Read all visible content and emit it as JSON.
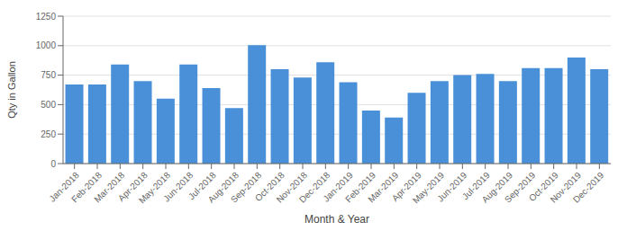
{
  "chart_data": {
    "type": "bar",
    "categories": [
      "Jan-2018",
      "Feb-2018",
      "Mar-2018",
      "Apr-2018",
      "May-2018",
      "Jun-2018",
      "Jul-2018",
      "Aug-2018",
      "Sep-2018",
      "Oct-2018",
      "Nov-2018",
      "Dec-2018",
      "Jan-2019",
      "Feb-2019",
      "Mar-2019",
      "Apr-2019",
      "May-2019",
      "Jun-2019",
      "Jul-2019",
      "Aug-2019",
      "Sep-2019",
      "Oct-2019",
      "Nov-2019",
      "Dec-2019"
    ],
    "values": [
      670,
      670,
      840,
      700,
      550,
      840,
      640,
      470,
      1005,
      800,
      730,
      860,
      690,
      450,
      390,
      600,
      700,
      750,
      760,
      700,
      810,
      810,
      900,
      800
    ],
    "color": "#4a90d9",
    "xlabel": "Month & Year",
    "ylabel": "Qty in Gallon",
    "ylim": [
      0,
      1250
    ],
    "yticks": [
      0,
      250,
      500,
      750,
      1000,
      1250
    ],
    "grid": true
  }
}
